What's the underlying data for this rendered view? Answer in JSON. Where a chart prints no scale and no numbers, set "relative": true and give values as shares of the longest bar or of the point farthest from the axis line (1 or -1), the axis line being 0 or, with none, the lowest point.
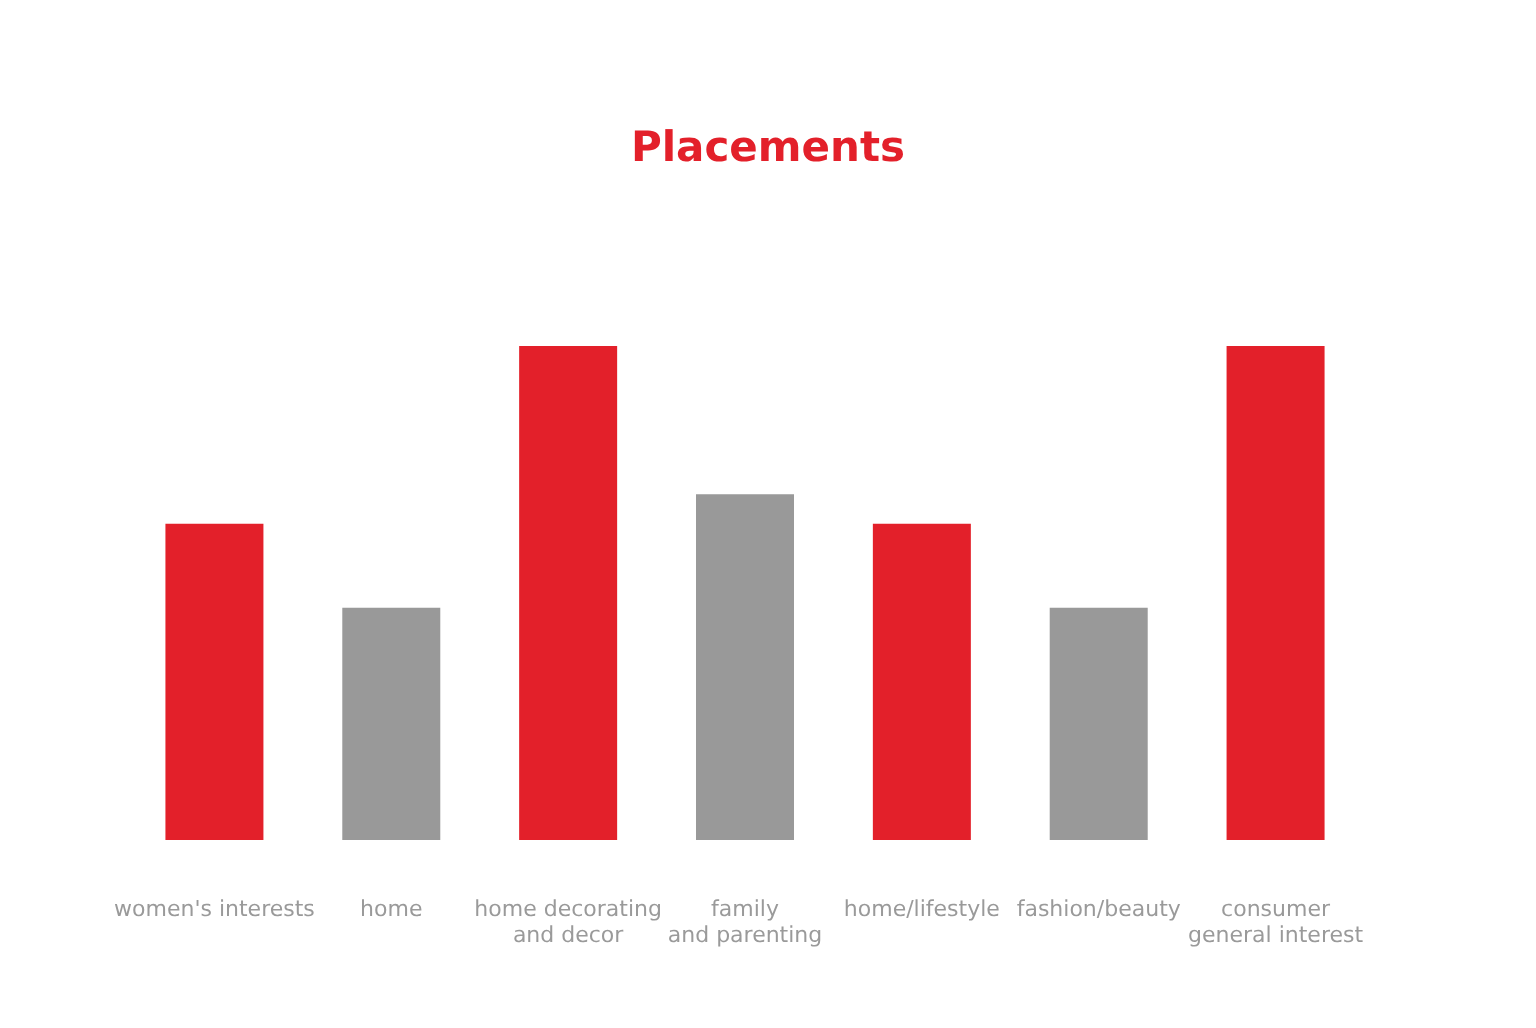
{
  "chart_data": {
    "type": "bar",
    "title": "Placements",
    "relative": true,
    "categories": [
      "women's interests",
      "home",
      "home decorating\nand decor",
      "family\nand parenting",
      "home/lifestyle",
      "fashion/beauty",
      "consumer\ngeneral interest"
    ],
    "values": [
      0.64,
      0.47,
      1.0,
      0.7,
      0.64,
      0.47,
      1.0
    ],
    "colors": [
      "#e3202a",
      "#999999",
      "#e3202a",
      "#999999",
      "#e3202a",
      "#999999",
      "#e3202a"
    ]
  }
}
